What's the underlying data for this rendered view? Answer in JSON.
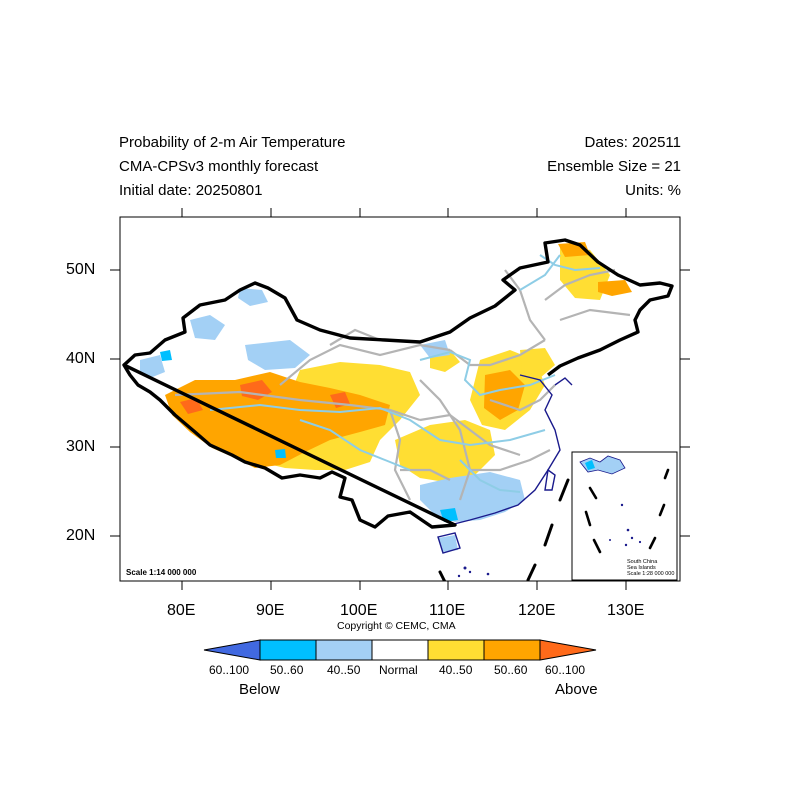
{
  "header": {
    "title_line1": "Probability of 2-m Air Temperature",
    "title_line2": "CMA-CPSv3 monthly forecast",
    "title_line3": "Initial date: 20250801",
    "right_line1": "Dates: 202511",
    "right_line2": "Ensemble Size = 21",
    "right_line3": "Units: %"
  },
  "axes": {
    "lon_labels": [
      "80E",
      "90E",
      "100E",
      "110E",
      "120E",
      "130E"
    ],
    "lat_labels": [
      "50N",
      "40N",
      "30N",
      "20N"
    ]
  },
  "map": {
    "scale_label": "Scale 1:14 000 000",
    "copyright": "Copyright © CEMC, CMA",
    "inset": {
      "line1": "South China",
      "line2": "Sea Islands",
      "line3": "Scale 1:28 000 000"
    }
  },
  "legend": {
    "bins": [
      {
        "label": "60..100",
        "color": "#4169e1"
      },
      {
        "label": "50..60",
        "color": "#00bfff"
      },
      {
        "label": "40..50",
        "color": "#a3d0f5"
      },
      {
        "label": "Normal",
        "color": "#ffffff"
      },
      {
        "label": "40..50",
        "color": "#ffde33"
      },
      {
        "label": "50..60",
        "color": "#ffa500"
      },
      {
        "label": "60..100",
        "color": "#ff6a1a"
      }
    ],
    "below_label": "Below",
    "above_label": "Above"
  }
}
